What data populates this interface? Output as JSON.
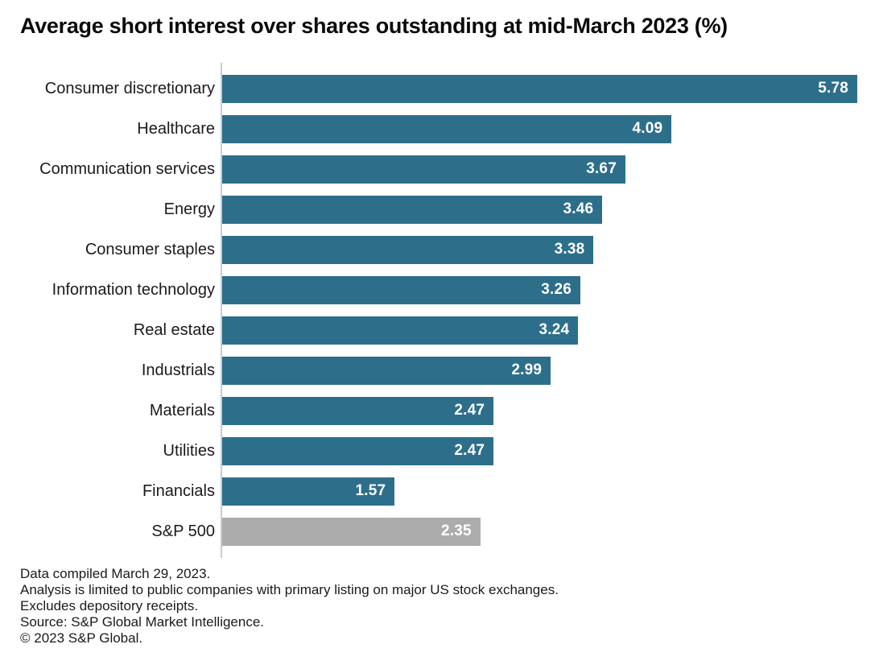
{
  "title": "Average short interest over shares outstanding at mid-March 2023 (%)",
  "chart_data": {
    "type": "bar",
    "orientation": "horizontal",
    "title": "Average short interest over shares outstanding at mid-March 2023 (%)",
    "categories": [
      "Consumer discretionary",
      "Healthcare",
      "Communication services",
      "Energy",
      "Consumer staples",
      "Information technology",
      "Real estate",
      "Industrials",
      "Materials",
      "Utilities",
      "Financials",
      "S&P 500"
    ],
    "values": [
      5.78,
      4.09,
      3.67,
      3.46,
      3.38,
      3.26,
      3.24,
      2.99,
      2.47,
      2.47,
      1.57,
      2.35
    ],
    "xlim": [
      0,
      5.78
    ],
    "grid": false,
    "legend": false,
    "value_labels": "inside-end",
    "benchmark_category": "S&P 500",
    "colors": {
      "sector_bar": "#2d6f8b",
      "benchmark_bar": "#acacac",
      "value_label": "#ffffff",
      "axis_line": "#c7ccd1"
    }
  },
  "footnotes": [
    "Data compiled March 29, 2023.",
    "Analysis is limited to public companies with primary listing on major US stock exchanges.",
    "Excludes depository receipts.",
    "Source: S&P Global Market Intelligence.",
    "© 2023 S&P Global."
  ]
}
